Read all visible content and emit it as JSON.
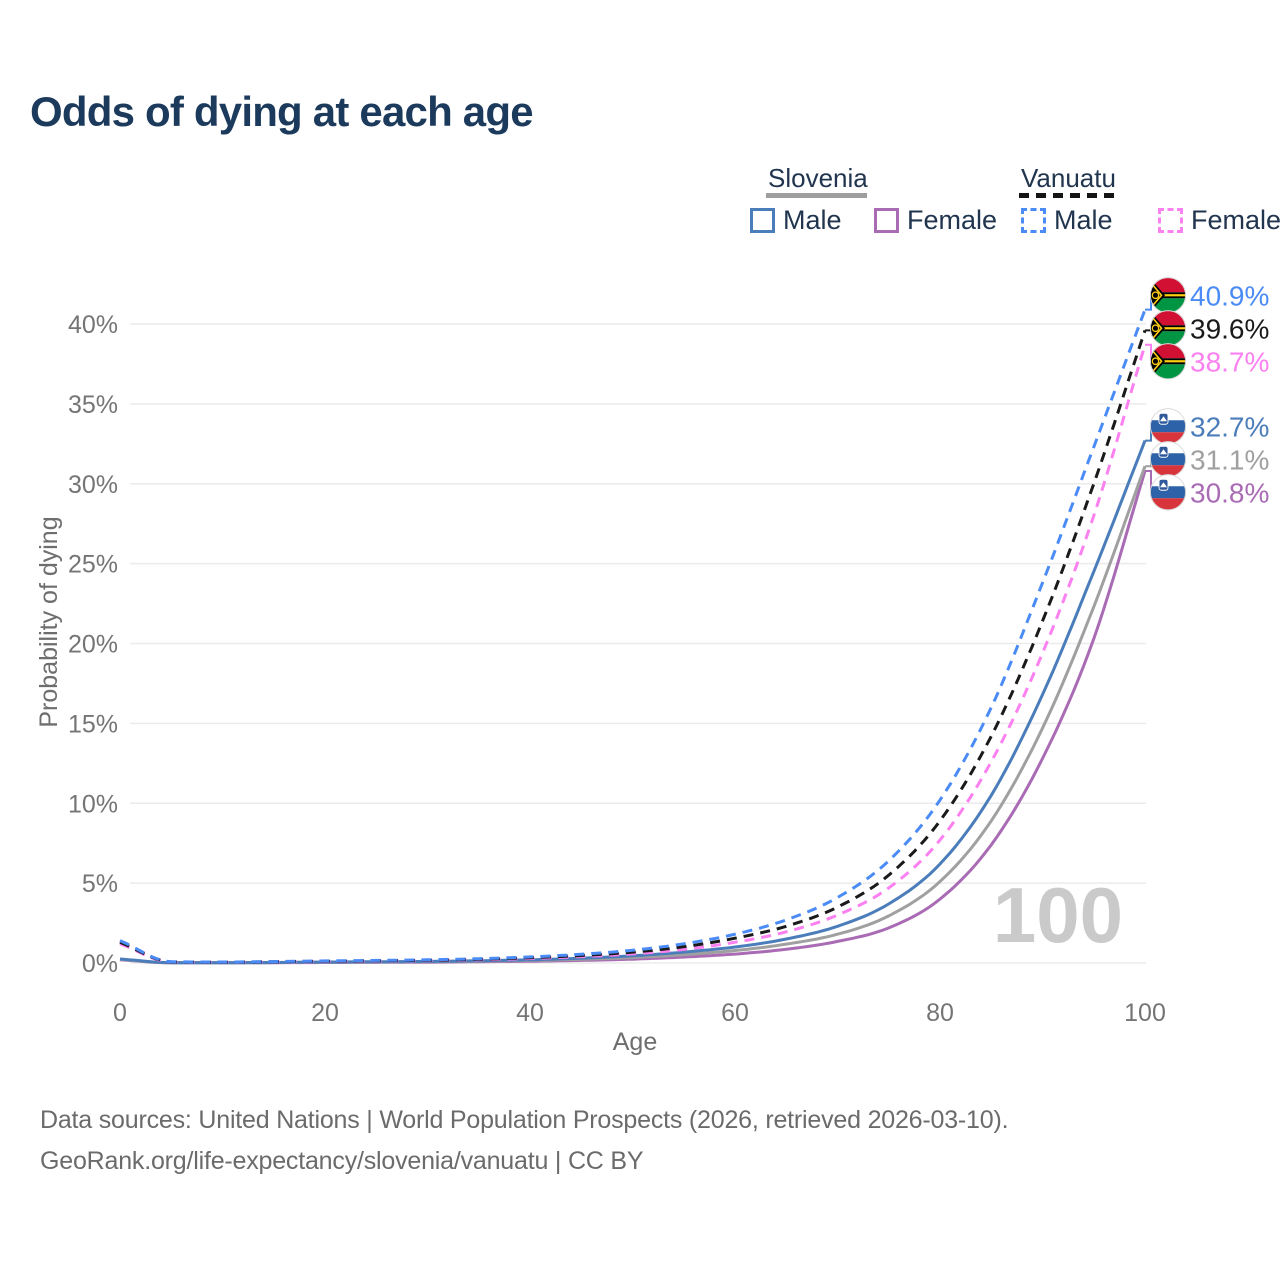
{
  "title": "Odds of dying at each age",
  "legend": {
    "groups": [
      {
        "country": "Slovenia",
        "line_style": "solid",
        "underline_color": "#9e9e9e",
        "items": [
          {
            "label": "Male",
            "color": "#4a7dba",
            "dashed": false
          },
          {
            "label": "Female",
            "color": "#a96bb4",
            "dashed": false
          }
        ]
      },
      {
        "country": "Vanuatu",
        "line_style": "dashed",
        "underline_color": "#141414",
        "items": [
          {
            "label": "Male",
            "color": "#4b8bf5",
            "dashed": true
          },
          {
            "label": "Female",
            "color": "#fb80f0",
            "dashed": true
          }
        ]
      }
    ]
  },
  "watermark": "100",
  "footer": {
    "line1": "Data sources: United Nations | World Population Prospects (2026, retrieved 2026-03-10).",
    "line2": "GeoRank.org/life-expectancy/slovenia/vanuatu | CC BY"
  },
  "chart_data": {
    "type": "line",
    "title": "Odds of dying at each age",
    "xlabel": "Age",
    "ylabel": "Probability of dying",
    "xlim": [
      0,
      100
    ],
    "ylim": [
      0,
      42
    ],
    "x_ticks": [
      0,
      20,
      40,
      60,
      80,
      100
    ],
    "y_ticks": [
      0,
      5,
      10,
      15,
      20,
      25,
      30,
      35,
      40
    ],
    "y_tick_suffix": "%",
    "grid": true,
    "ages": [
      0,
      5,
      10,
      15,
      20,
      25,
      30,
      35,
      40,
      45,
      50,
      55,
      60,
      65,
      70,
      75,
      80,
      85,
      90,
      95,
      100
    ],
    "series": [
      {
        "name": "Vanuatu Male",
        "flag": "vanuatu",
        "color": "#4b8bf5",
        "dashed": true,
        "end_label": "40.9%",
        "values": [
          1.4,
          0.08,
          0.06,
          0.09,
          0.13,
          0.16,
          0.2,
          0.27,
          0.38,
          0.55,
          0.8,
          1.2,
          1.8,
          2.7,
          4.1,
          6.4,
          10.2,
          16.0,
          23.8,
          32.3,
          40.9
        ]
      },
      {
        "name": "Vanuatu Both sexes",
        "flag": "vanuatu",
        "color": "#1a1a1a",
        "dashed": true,
        "end_label": "39.6%",
        "values": [
          1.3,
          0.07,
          0.05,
          0.08,
          0.11,
          0.14,
          0.17,
          0.23,
          0.33,
          0.47,
          0.68,
          1.02,
          1.55,
          2.3,
          3.5,
          5.5,
          8.9,
          14.2,
          21.4,
          30.0,
          39.6
        ]
      },
      {
        "name": "Vanuatu Female",
        "flag": "vanuatu",
        "color": "#fb80f0",
        "dashed": true,
        "end_label": "38.7%",
        "values": [
          1.2,
          0.06,
          0.05,
          0.07,
          0.09,
          0.12,
          0.15,
          0.2,
          0.28,
          0.4,
          0.57,
          0.85,
          1.3,
          1.95,
          3.0,
          4.7,
          7.7,
          12.6,
          19.4,
          28.0,
          38.7
        ]
      },
      {
        "name": "Slovenia Male",
        "flag": "slovenia",
        "color": "#4a7dba",
        "dashed": false,
        "end_label": "32.7%",
        "values": [
          0.25,
          0.02,
          0.02,
          0.03,
          0.06,
          0.08,
          0.1,
          0.14,
          0.2,
          0.3,
          0.45,
          0.68,
          1.0,
          1.5,
          2.3,
          3.7,
          6.2,
          10.5,
          16.8,
          24.5,
          32.7
        ]
      },
      {
        "name": "Slovenia Both sexes",
        "flag": "slovenia",
        "color": "#a0a0a0",
        "dashed": false,
        "end_label": "31.1%",
        "values": [
          0.22,
          0.02,
          0.02,
          0.03,
          0.05,
          0.06,
          0.08,
          0.11,
          0.16,
          0.23,
          0.34,
          0.52,
          0.78,
          1.18,
          1.8,
          2.95,
          5.1,
          8.9,
          14.7,
          22.3,
          31.1
        ]
      },
      {
        "name": "Slovenia Female",
        "flag": "slovenia",
        "color": "#a96bb4",
        "dashed": false,
        "end_label": "30.8%",
        "values": [
          0.2,
          0.01,
          0.01,
          0.02,
          0.03,
          0.04,
          0.05,
          0.08,
          0.11,
          0.16,
          0.24,
          0.37,
          0.56,
          0.86,
          1.35,
          2.2,
          4.0,
          7.4,
          12.8,
          20.3,
          30.8
        ]
      }
    ]
  }
}
